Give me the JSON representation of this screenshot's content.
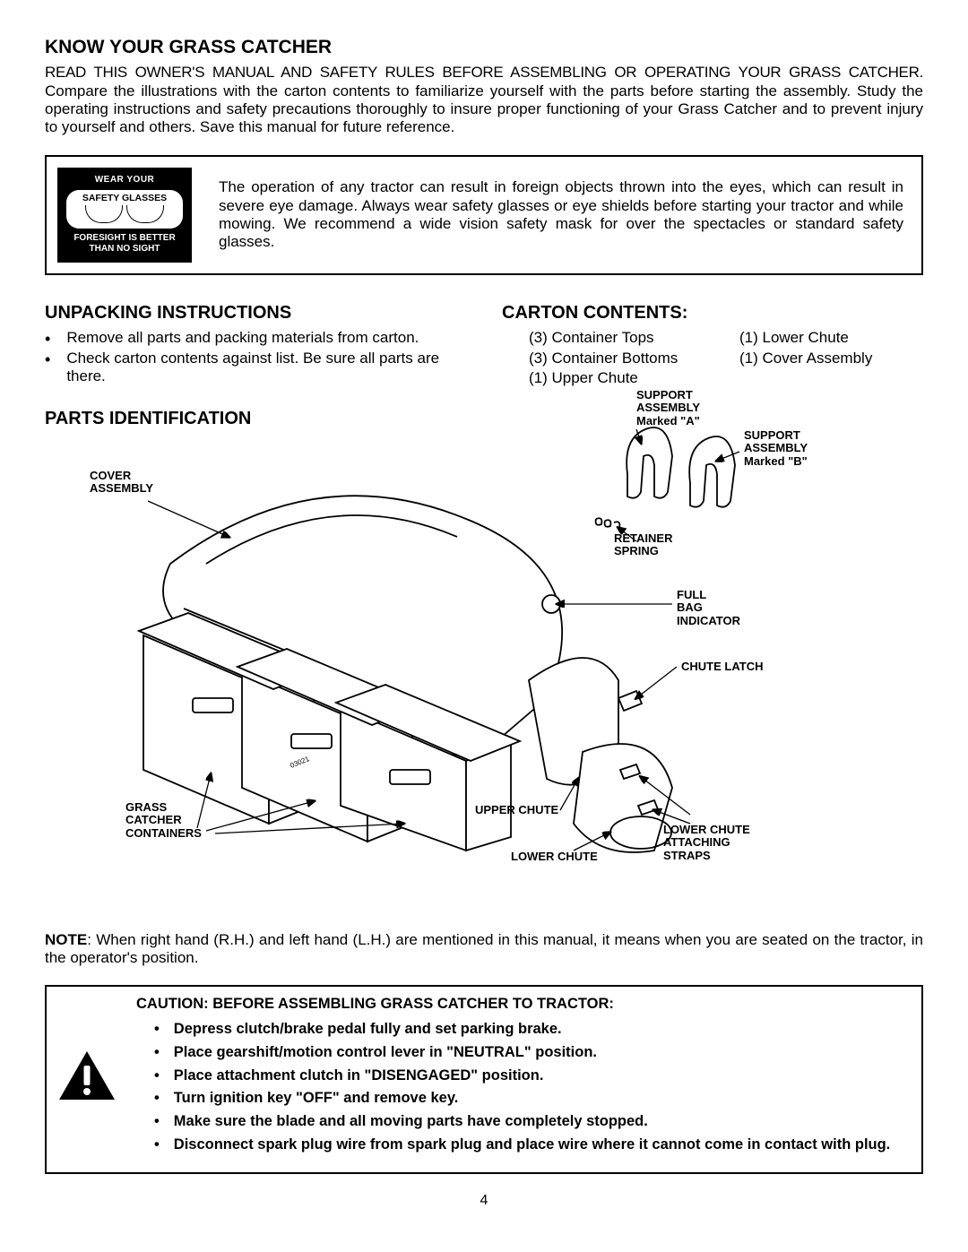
{
  "title": "KNOW YOUR GRASS CATCHER",
  "intro_line1": "READ THIS OWNER'S MANUAL AND SAFETY RULES BEFORE ASSEMBLING OR OPERATING YOUR GRASS CATCHER.",
  "intro_rest": "Compare the illustrations with the carton contents to familiarize yourself with the parts before starting the assembly. Study the operating instructions and safety precautions thoroughly to insure proper functioning of your Grass Catcher and to prevent injury to yourself and others.  Save this manual for future reference.",
  "badge": {
    "line1": "WEAR YOUR",
    "line2": "SAFETY GLASSES",
    "line3a": "FORESIGHT IS BETTER",
    "line3b": "THAN NO SIGHT"
  },
  "warn_text": "The operation of any tractor can result in foreign objects thrown into the eyes, which can result in severe eye damage. Always wear safety glasses or eye shields before starting your tractor and while mowing. We recommend a  wide vision safety mask for over the spectacles or standard safety glasses.",
  "unpack": {
    "title": "UNPACKING INSTRUCTIONS",
    "items": [
      "Remove all parts and packing materials from carton.",
      "Check carton contents against list.  Be sure all parts are there."
    ]
  },
  "carton": {
    "title": "CARTON CONTENTS:",
    "items": [
      "(3) Container Tops",
      "(1) Lower Chute",
      "(3) Container Bottoms",
      "(1) Cover Assembly",
      "(1) Upper Chute",
      ""
    ]
  },
  "parts_title": "PARTS   IDENTIFICATION",
  "labels": {
    "cover_assembly": "COVER\nASSEMBLY",
    "support_a": "SUPPORT\nASSEMBLY\nMarked \"A\"",
    "support_b": "SUPPORT\nASSEMBLY\nMarked \"B\"",
    "retainer": "RETAINER\nSPRING",
    "full_bag": "FULL\nBAG\nINDICATOR",
    "chute_latch": "CHUTE LATCH",
    "upper_chute": "UPPER CHUTE",
    "lower_chute": "LOWER CHUTE",
    "lower_chute_straps": "LOWER CHUTE\nATTACHING\nSTRAPS",
    "grass_catcher": "GRASS\nCATCHER\nCONTAINERS",
    "part_num": "03021"
  },
  "note_label": "NOTE",
  "note_text": ": When right hand (R.H.) and left hand (L.H.) are mentioned in this manual, it means when you are seated on the tractor, in the operator's position.",
  "caution": {
    "title": "CAUTION:  BEFORE ASSEMBLING GRASS CATCHER TO TRACTOR:",
    "items": [
      "Depress clutch/brake pedal fully and set parking brake.",
      "Place gearshift/motion control lever in \"NEUTRAL\" position.",
      "Place attachment clutch in \"DISENGAGED\" position.",
      "Turn ignition key \"OFF\" and remove key.",
      "Make sure the blade and all moving parts have completely stopped.",
      "Disconnect spark plug wire from spark plug and place wire where it cannot come in contact with plug."
    ]
  },
  "page_number": "4",
  "colors": {
    "text": "#000000",
    "bg": "#ffffff",
    "border": "#000000"
  }
}
